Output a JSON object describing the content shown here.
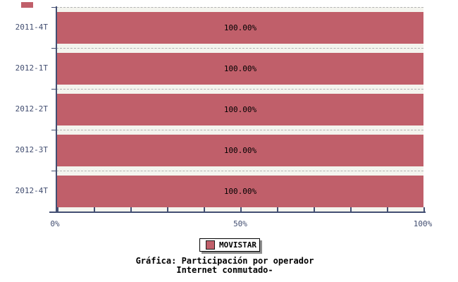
{
  "chart": {
    "bar_color": "#c05f6a",
    "axis_color": "#434f73",
    "row_background": "#f4f4ee",
    "grid_dash_color": "#b3b3b3",
    "label_color": "#414d70",
    "top_left_marker_color": "#c05f6a",
    "legend_shadow_color": "#8f8f8f"
  },
  "legend": {
    "label": "MOVISTAR"
  },
  "caption": {
    "line1": "Gráfica: Participación por operador",
    "line2": "Internet conmutado-"
  },
  "x_axis": {
    "ticks": [
      "0%",
      "50%",
      "100%"
    ]
  },
  "chart_data": {
    "type": "bar",
    "orientation": "horizontal",
    "title": "Gráfica: Participación por operador Internet conmutado-",
    "categories": [
      "2011-4T",
      "2012-1T",
      "2012-2T",
      "2012-3T",
      "2012-4T"
    ],
    "series": [
      {
        "name": "MOVISTAR",
        "color": "#c05f6a",
        "values": [
          100,
          100,
          100,
          100,
          100
        ]
      }
    ],
    "value_labels": [
      "100.00%",
      "100.00%",
      "100.00%",
      "100.00%",
      "100.00%"
    ],
    "xlabel": "",
    "ylabel": "",
    "xlim": [
      0,
      100
    ],
    "x_tick_labels": [
      "0%",
      "50%",
      "100%"
    ],
    "x_tick_positions": [
      0,
      50,
      100
    ],
    "x_minor_tick_step": 10,
    "grid": "dashed horizontal lines at row boundaries",
    "legend_position": "bottom-center"
  }
}
